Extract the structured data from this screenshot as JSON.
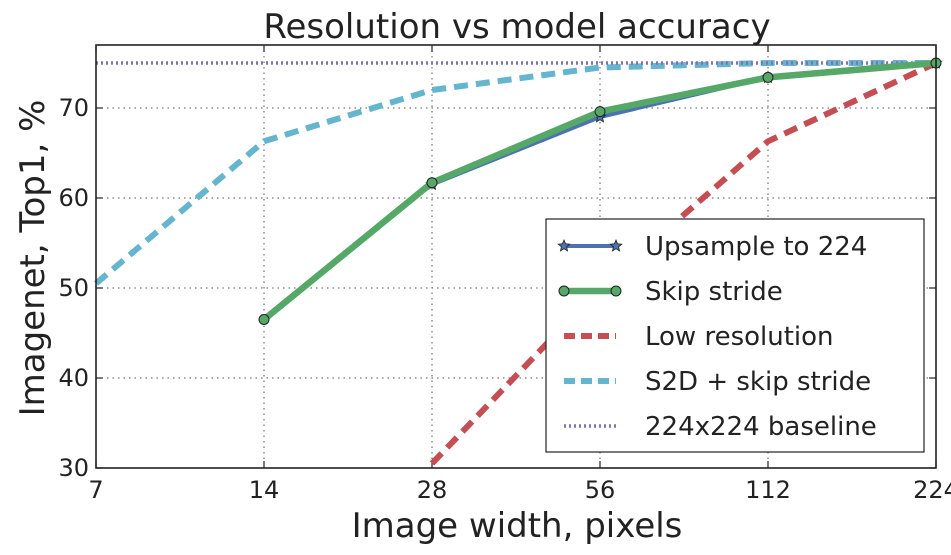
{
  "chart_data": {
    "type": "line",
    "title": "Resolution vs model accuracy",
    "xlabel": "Image width, pixels",
    "ylabel": "Imagenet, Top1, %",
    "x_scale": "log2",
    "xlim": [
      7,
      224
    ],
    "ylim": [
      30,
      77
    ],
    "x_ticks": [
      7,
      14,
      28,
      56,
      112,
      224
    ],
    "y_ticks": [
      30,
      40,
      50,
      60,
      70
    ],
    "grid": true,
    "legend_position": "lower-right",
    "series": [
      {
        "name": "Upsample to 224",
        "color": "#4c72b0",
        "style": "solid",
        "marker": "star",
        "points": [
          {
            "x": 28,
            "y": 61.5
          },
          {
            "x": 56,
            "y": 69.0
          },
          {
            "x": 112,
            "y": 73.4
          },
          {
            "x": 224,
            "y": 75.0
          }
        ]
      },
      {
        "name": "Skip stride",
        "color": "#55a868",
        "style": "solid",
        "marker": "circle",
        "points": [
          {
            "x": 14,
            "y": 46.5
          },
          {
            "x": 28,
            "y": 61.7
          },
          {
            "x": 56,
            "y": 69.6
          },
          {
            "x": 112,
            "y": 73.4
          },
          {
            "x": 224,
            "y": 75.0
          }
        ]
      },
      {
        "name": "Low resolution",
        "color": "#c44e52",
        "style": "dashed",
        "marker": "none",
        "points": [
          {
            "x": 28,
            "y": 30.5
          },
          {
            "x": 56,
            "y": 50.0
          },
          {
            "x": 112,
            "y": 66.3
          },
          {
            "x": 224,
            "y": 75.0
          }
        ]
      },
      {
        "name": "S2D + skip stride",
        "color": "#64b5cd",
        "style": "dashed",
        "marker": "none",
        "points": [
          {
            "x": 7,
            "y": 50.5
          },
          {
            "x": 14,
            "y": 66.3
          },
          {
            "x": 28,
            "y": 72.0
          },
          {
            "x": 56,
            "y": 74.5
          },
          {
            "x": 112,
            "y": 75.0
          },
          {
            "x": 224,
            "y": 75.0
          }
        ]
      },
      {
        "name": "224x224 baseline",
        "color": "#8172b2",
        "style": "dotted",
        "marker": "none",
        "points": [
          {
            "x": 7,
            "y": 75.0
          },
          {
            "x": 224,
            "y": 75.0
          }
        ]
      }
    ]
  }
}
